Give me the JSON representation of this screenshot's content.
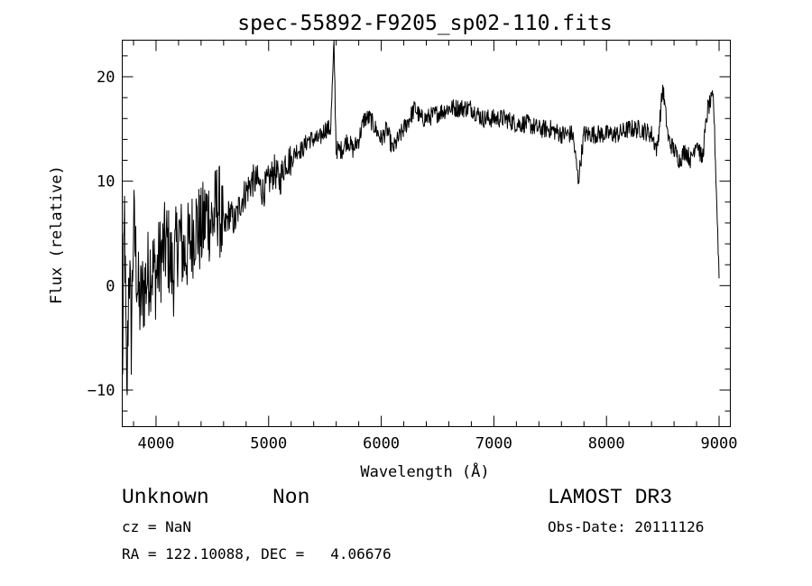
{
  "chart_data": {
    "type": "line",
    "title": "spec-55892-F9205_sp02-110.fits",
    "xlabel": "Wavelength (Å)",
    "ylabel": "Flux (relative)",
    "xlim": [
      3700,
      9100
    ],
    "ylim": [
      -13.5,
      23.5
    ],
    "xticks": [
      4000,
      5000,
      6000,
      7000,
      8000,
      9000
    ],
    "xtick_labels": [
      "4000",
      "5000",
      "6000",
      "7000",
      "8000",
      "9000"
    ],
    "yticks": [
      -10,
      0,
      10,
      20
    ],
    "ytick_labels": [
      "−10",
      "0",
      "10",
      "20"
    ],
    "grid": false,
    "series": [
      {
        "x": [
          3700,
          3720,
          3740,
          3760,
          3780,
          3800,
          3850,
          3900,
          3950,
          4000,
          4050,
          4100,
          4150,
          4200,
          4250,
          4300,
          4350,
          4400,
          4450,
          4500,
          4550,
          4600,
          4650,
          4700,
          4750,
          4800,
          4850,
          4900,
          4950,
          5000,
          5050,
          5100,
          5150,
          5200,
          5250,
          5300,
          5350,
          5400,
          5450,
          5500,
          5550,
          5580,
          5600,
          5650,
          5700,
          5750,
          5800,
          5850,
          5900,
          5950,
          6000,
          6050,
          6100,
          6150,
          6200,
          6250,
          6300,
          6350,
          6400,
          6500,
          6600,
          6700,
          6800,
          6900,
          7000,
          7100,
          7200,
          7300,
          7400,
          7500,
          7600,
          7700,
          7750,
          7800,
          7900,
          8000,
          8100,
          8200,
          8300,
          8400,
          8450,
          8500,
          8550,
          8600,
          8650,
          8700,
          8750,
          8800,
          8850,
          8900,
          8950,
          9000
        ],
        "y": [
          -10,
          7,
          -12,
          3,
          -5,
          6,
          -2,
          0,
          2,
          1,
          3,
          4,
          1,
          5,
          3,
          4,
          6,
          5,
          7,
          6,
          8,
          5,
          7,
          6,
          8,
          9,
          10,
          10,
          9,
          10,
          11,
          10,
          12,
          12,
          13,
          13,
          14,
          14,
          14,
          15,
          15,
          23,
          13,
          13,
          14,
          13,
          14,
          16,
          16,
          15,
          14,
          15,
          13,
          14,
          15,
          16,
          17,
          16,
          16,
          16.5,
          17,
          17,
          17,
          16,
          16,
          16,
          15.5,
          15.5,
          15,
          15,
          14.5,
          14.5,
          10,
          14.5,
          14.5,
          14.5,
          14.5,
          15,
          15,
          14.5,
          13,
          19,
          14,
          13,
          12,
          13,
          12,
          14,
          12,
          17,
          18,
          1
        ]
      }
    ]
  },
  "info": {
    "object_class": "Unknown",
    "object_subclass": "Non",
    "survey": "LAMOST DR3",
    "cz": "cz = NaN",
    "obs_date": "Obs-Date: 20111126",
    "coords": "RA = 122.10088, DEC =   4.06676"
  }
}
